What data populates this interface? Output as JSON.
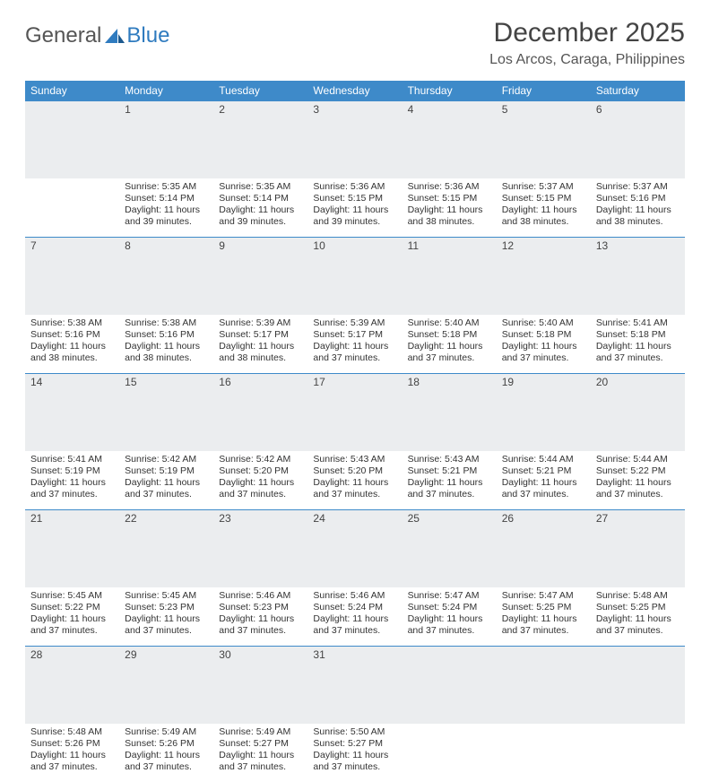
{
  "logo": {
    "text1": "General",
    "text2": "Blue"
  },
  "title": "December 2025",
  "location": "Los Arcos, Caraga, Philippines",
  "colors": {
    "header_bg": "#3e8ac9",
    "header_text": "#ffffff",
    "daynum_bg": "#ebedef",
    "border": "#3e8ac9",
    "text": "#333333",
    "logo_gray": "#555555",
    "logo_blue": "#2f7bbf"
  },
  "weekdays": [
    "Sunday",
    "Monday",
    "Tuesday",
    "Wednesday",
    "Thursday",
    "Friday",
    "Saturday"
  ],
  "weeks": [
    [
      null,
      {
        "n": "1",
        "sunrise": "5:35 AM",
        "sunset": "5:14 PM",
        "daylight": "11 hours and 39 minutes."
      },
      {
        "n": "2",
        "sunrise": "5:35 AM",
        "sunset": "5:14 PM",
        "daylight": "11 hours and 39 minutes."
      },
      {
        "n": "3",
        "sunrise": "5:36 AM",
        "sunset": "5:15 PM",
        "daylight": "11 hours and 39 minutes."
      },
      {
        "n": "4",
        "sunrise": "5:36 AM",
        "sunset": "5:15 PM",
        "daylight": "11 hours and 38 minutes."
      },
      {
        "n": "5",
        "sunrise": "5:37 AM",
        "sunset": "5:15 PM",
        "daylight": "11 hours and 38 minutes."
      },
      {
        "n": "6",
        "sunrise": "5:37 AM",
        "sunset": "5:16 PM",
        "daylight": "11 hours and 38 minutes."
      }
    ],
    [
      {
        "n": "7",
        "sunrise": "5:38 AM",
        "sunset": "5:16 PM",
        "daylight": "11 hours and 38 minutes."
      },
      {
        "n": "8",
        "sunrise": "5:38 AM",
        "sunset": "5:16 PM",
        "daylight": "11 hours and 38 minutes."
      },
      {
        "n": "9",
        "sunrise": "5:39 AM",
        "sunset": "5:17 PM",
        "daylight": "11 hours and 38 minutes."
      },
      {
        "n": "10",
        "sunrise": "5:39 AM",
        "sunset": "5:17 PM",
        "daylight": "11 hours and 37 minutes."
      },
      {
        "n": "11",
        "sunrise": "5:40 AM",
        "sunset": "5:18 PM",
        "daylight": "11 hours and 37 minutes."
      },
      {
        "n": "12",
        "sunrise": "5:40 AM",
        "sunset": "5:18 PM",
        "daylight": "11 hours and 37 minutes."
      },
      {
        "n": "13",
        "sunrise": "5:41 AM",
        "sunset": "5:18 PM",
        "daylight": "11 hours and 37 minutes."
      }
    ],
    [
      {
        "n": "14",
        "sunrise": "5:41 AM",
        "sunset": "5:19 PM",
        "daylight": "11 hours and 37 minutes."
      },
      {
        "n": "15",
        "sunrise": "5:42 AM",
        "sunset": "5:19 PM",
        "daylight": "11 hours and 37 minutes."
      },
      {
        "n": "16",
        "sunrise": "5:42 AM",
        "sunset": "5:20 PM",
        "daylight": "11 hours and 37 minutes."
      },
      {
        "n": "17",
        "sunrise": "5:43 AM",
        "sunset": "5:20 PM",
        "daylight": "11 hours and 37 minutes."
      },
      {
        "n": "18",
        "sunrise": "5:43 AM",
        "sunset": "5:21 PM",
        "daylight": "11 hours and 37 minutes."
      },
      {
        "n": "19",
        "sunrise": "5:44 AM",
        "sunset": "5:21 PM",
        "daylight": "11 hours and 37 minutes."
      },
      {
        "n": "20",
        "sunrise": "5:44 AM",
        "sunset": "5:22 PM",
        "daylight": "11 hours and 37 minutes."
      }
    ],
    [
      {
        "n": "21",
        "sunrise": "5:45 AM",
        "sunset": "5:22 PM",
        "daylight": "11 hours and 37 minutes."
      },
      {
        "n": "22",
        "sunrise": "5:45 AM",
        "sunset": "5:23 PM",
        "daylight": "11 hours and 37 minutes."
      },
      {
        "n": "23",
        "sunrise": "5:46 AM",
        "sunset": "5:23 PM",
        "daylight": "11 hours and 37 minutes."
      },
      {
        "n": "24",
        "sunrise": "5:46 AM",
        "sunset": "5:24 PM",
        "daylight": "11 hours and 37 minutes."
      },
      {
        "n": "25",
        "sunrise": "5:47 AM",
        "sunset": "5:24 PM",
        "daylight": "11 hours and 37 minutes."
      },
      {
        "n": "26",
        "sunrise": "5:47 AM",
        "sunset": "5:25 PM",
        "daylight": "11 hours and 37 minutes."
      },
      {
        "n": "27",
        "sunrise": "5:48 AM",
        "sunset": "5:25 PM",
        "daylight": "11 hours and 37 minutes."
      }
    ],
    [
      {
        "n": "28",
        "sunrise": "5:48 AM",
        "sunset": "5:26 PM",
        "daylight": "11 hours and 37 minutes."
      },
      {
        "n": "29",
        "sunrise": "5:49 AM",
        "sunset": "5:26 PM",
        "daylight": "11 hours and 37 minutes."
      },
      {
        "n": "30",
        "sunrise": "5:49 AM",
        "sunset": "5:27 PM",
        "daylight": "11 hours and 37 minutes."
      },
      {
        "n": "31",
        "sunrise": "5:50 AM",
        "sunset": "5:27 PM",
        "daylight": "11 hours and 37 minutes."
      },
      null,
      null,
      null
    ]
  ],
  "labels": {
    "sunrise": "Sunrise:",
    "sunset": "Sunset:",
    "daylight": "Daylight:"
  }
}
